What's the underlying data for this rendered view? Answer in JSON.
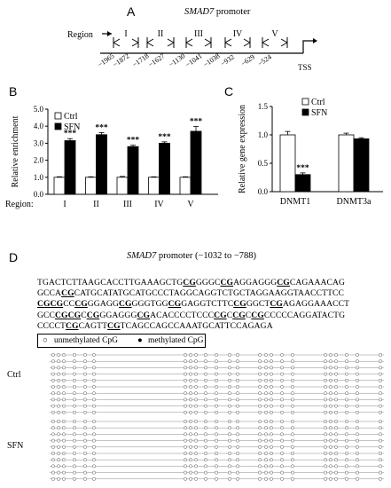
{
  "panelA": {
    "label": "A",
    "title_gene": "SMAD7",
    "title_rest": " promoter",
    "region_label": "Region",
    "regions": [
      "I",
      "II",
      "III",
      "IV",
      "V"
    ],
    "positions": [
      "-1965",
      "-1872",
      "-1718",
      "-1627",
      "-1130",
      "-1041",
      "-1038",
      "-932",
      "-629",
      "-524"
    ],
    "tss": "TSS"
  },
  "panelB": {
    "label": "B",
    "legend": [
      "Ctrl",
      "SFN"
    ],
    "xlabel_prefix": "Region:",
    "sig": "***"
  },
  "panelC": {
    "label": "C",
    "legend": [
      "Ctrl",
      "SFN"
    ],
    "sig": "***"
  },
  "panelD": {
    "label": "D",
    "title_gene": "SMAD7",
    "title_rest": " promoter (−1032 to −788)",
    "sequence_lines": [
      [
        [
          "TGACTCTTAAGCACCTTGAAAGCTG",
          false
        ],
        [
          "CG",
          true
        ],
        [
          "GGGC",
          false
        ],
        [
          "CG",
          true
        ],
        [
          "AGGAGGG",
          false
        ],
        [
          "CG",
          true
        ],
        [
          "CAGAAACAG",
          false
        ]
      ],
      [
        [
          "GCCA",
          false
        ],
        [
          "CG",
          true
        ],
        [
          "CATGCATATGCATGCCCTAGGCAGGTCTGCTAGGAAGGTAACCTTCC",
          false
        ]
      ],
      [
        [
          "CG",
          true
        ],
        [
          "CG",
          true
        ],
        [
          "CC",
          false
        ],
        [
          "CG",
          true
        ],
        [
          "GGAGG",
          false
        ],
        [
          "CG",
          true
        ],
        [
          "GGGTGG",
          false
        ],
        [
          "CG",
          true
        ],
        [
          "GAGGTCTTC",
          false
        ],
        [
          "CG",
          true
        ],
        [
          "GGCT",
          false
        ],
        [
          "CG",
          true
        ],
        [
          "AGAGGAAACCT",
          false
        ]
      ],
      [
        [
          "GCC",
          false
        ],
        [
          "CG",
          true
        ],
        [
          "CG",
          true
        ],
        [
          "C",
          false
        ],
        [
          "CG",
          true
        ],
        [
          "GGAGGG",
          false
        ],
        [
          "CG",
          true
        ],
        [
          "ACACCCCTCCC",
          false
        ],
        [
          "CG",
          true
        ],
        [
          "C",
          false
        ],
        [
          "CG",
          true
        ],
        [
          "C",
          false
        ],
        [
          "CG",
          true
        ],
        [
          "CCCCCAGGATACTG",
          false
        ]
      ],
      [
        [
          "CCCCT",
          false
        ],
        [
          "CG",
          true
        ],
        [
          "CAGTT",
          false
        ],
        [
          "CG",
          true
        ],
        [
          "TCAGCCAGCCAAATGCATTCCAGAGA",
          false
        ]
      ]
    ],
    "legend_unmethylated": "unmethylated CpG",
    "legend_methylated": "methylated CpG",
    "group_ctrl": "Ctrl",
    "group_sfn": "SFN",
    "clone_rows_per_group": 10,
    "methylated_sites": [
      [
        19,
        17
      ]
    ]
  },
  "chart_data": [
    {
      "type": "bar",
      "panel": "B",
      "title": "",
      "xlabel": "Region:",
      "ylabel": "Relative enrichment",
      "categories": [
        "I",
        "II",
        "III",
        "IV",
        "V"
      ],
      "ylim": [
        0,
        5.0
      ],
      "yticks": [
        "0.0",
        "1.0",
        "2.0",
        "3.0",
        "4.0",
        "5.0"
      ],
      "legend_position": "top-left",
      "series": [
        {
          "name": "Ctrl",
          "color": "#ffffff",
          "values": [
            1.0,
            1.0,
            1.0,
            1.0,
            1.0
          ],
          "errors": [
            0.03,
            0.03,
            0.05,
            0.03,
            0.03
          ]
        },
        {
          "name": "SFN",
          "color": "#000000",
          "values": [
            3.15,
            3.5,
            2.8,
            3.0,
            3.7
          ],
          "errors": [
            0.12,
            0.12,
            0.08,
            0.08,
            0.28
          ]
        }
      ],
      "annotations": [
        "***",
        "***",
        "***",
        "***",
        "***"
      ]
    },
    {
      "type": "bar",
      "panel": "C",
      "title": "",
      "xlabel": "",
      "ylabel": "Relative gene expression",
      "categories": [
        "DNMT1",
        "DNMT3a"
      ],
      "ylim": [
        0,
        1.5
      ],
      "yticks": [
        "0.0",
        "0.5",
        "1.0",
        "1.5"
      ],
      "legend_position": "top-right",
      "series": [
        {
          "name": "Ctrl",
          "color": "#ffffff",
          "values": [
            1.0,
            1.0
          ],
          "errors": [
            0.06,
            0.03
          ]
        },
        {
          "name": "SFN",
          "color": "#000000",
          "values": [
            0.3,
            0.93
          ],
          "errors": [
            0.03,
            0.02
          ]
        }
      ],
      "annotations": [
        "***",
        ""
      ]
    }
  ]
}
